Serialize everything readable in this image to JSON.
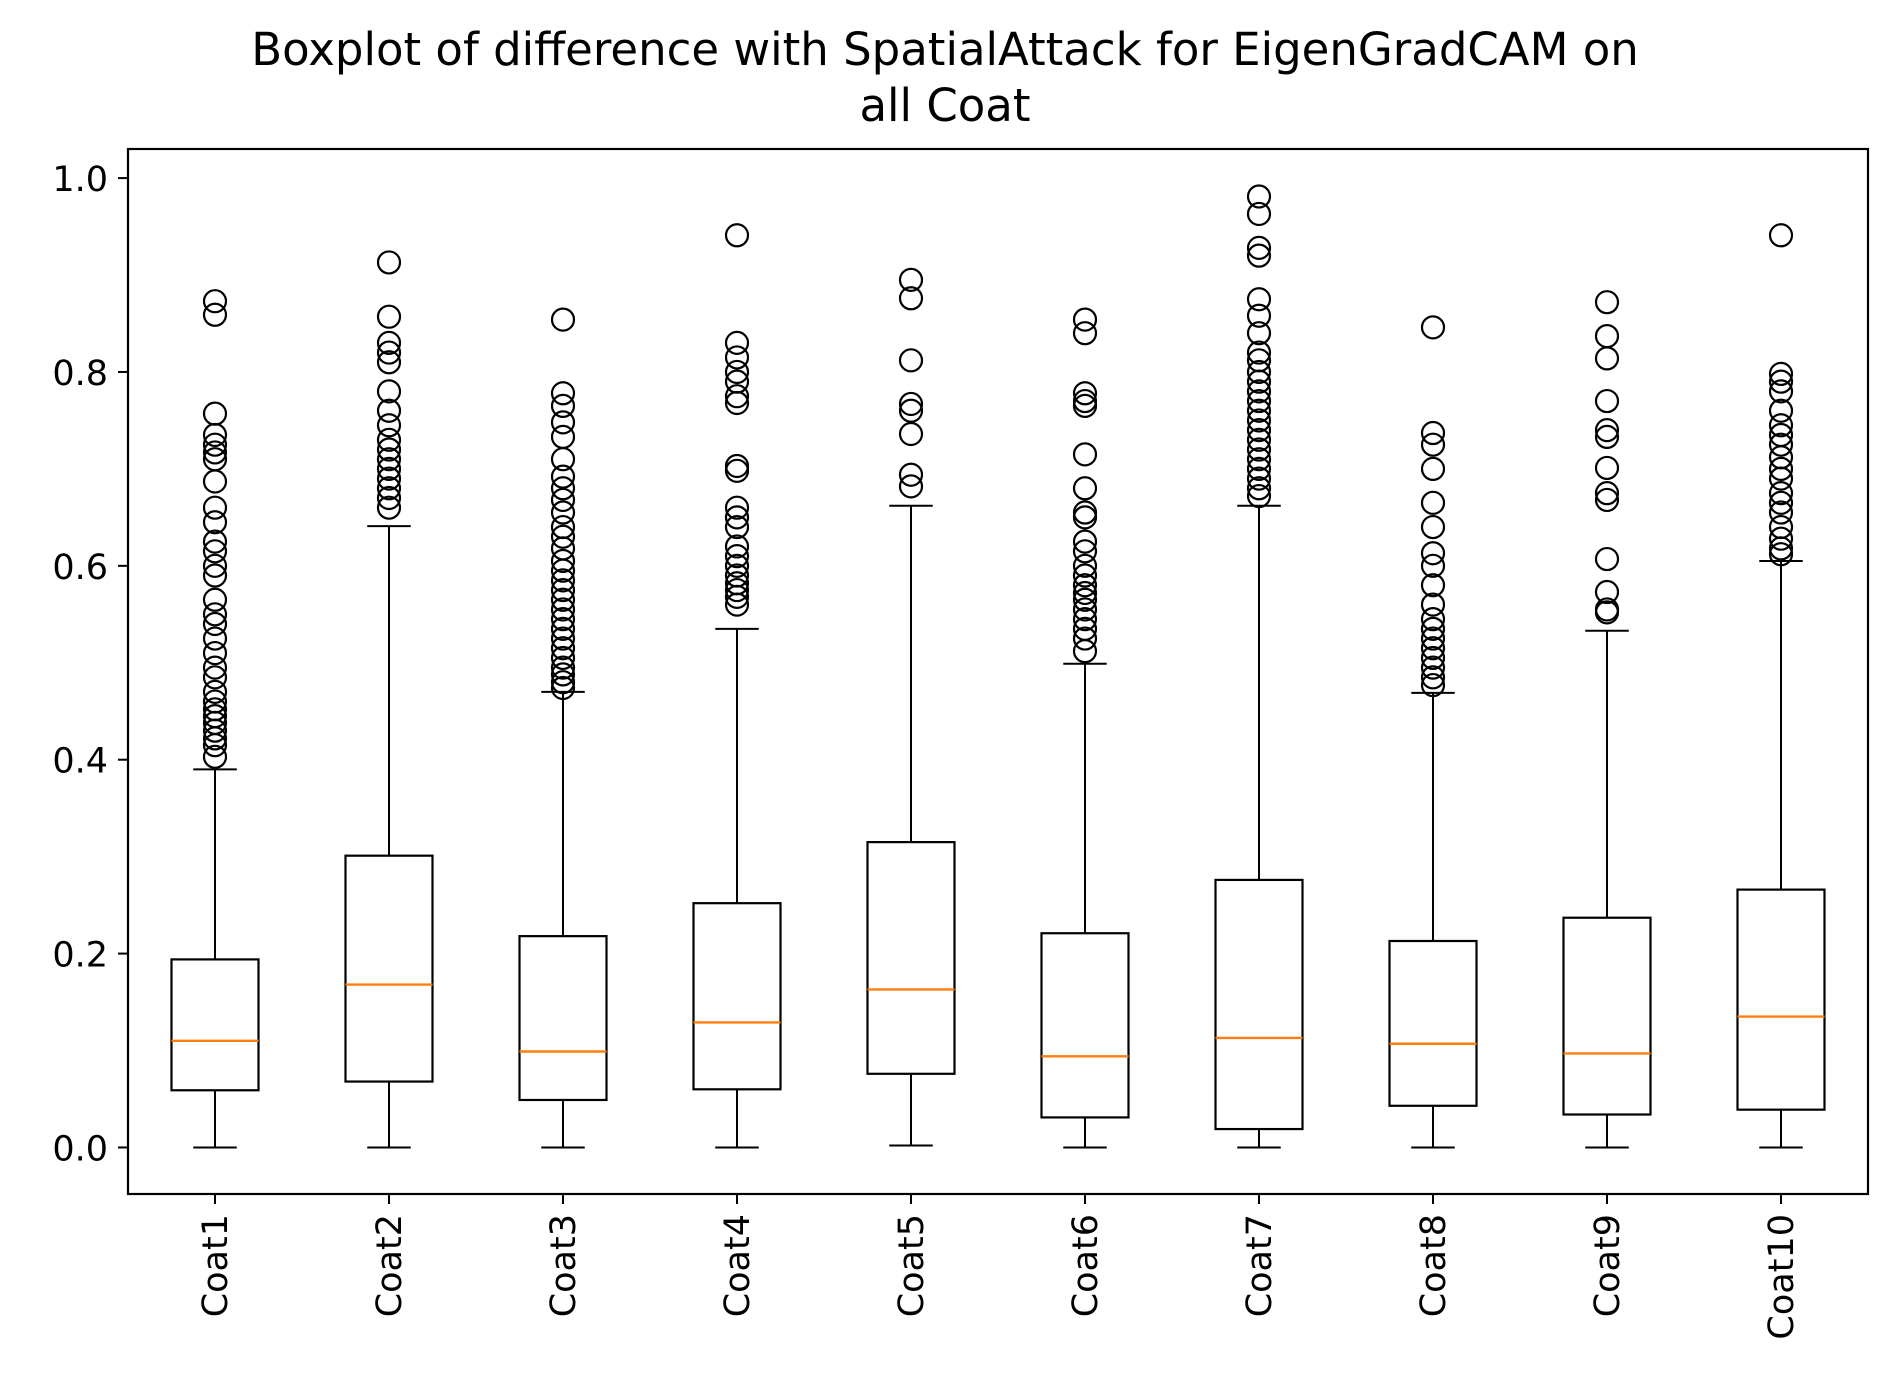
{
  "chart_data": {
    "type": "boxplot",
    "title_lines": [
      "Boxplot of difference with SpatialAttack for EigenGradCAM on",
      "all Coat"
    ],
    "xlabel": "",
    "ylabel": "",
    "ylim": [
      -0.048,
      1.03
    ],
    "yticks": [
      0.0,
      0.2,
      0.4,
      0.6,
      0.8,
      1.0
    ],
    "ytick_labels": [
      "0.0",
      "0.2",
      "0.4",
      "0.6",
      "0.8",
      "1.0"
    ],
    "grid": false,
    "colors": {
      "box": "#000000",
      "median": "#ff7f0e",
      "outlier": "#000000"
    },
    "categories": [
      "Coat1",
      "Coat2",
      "Coat3",
      "Coat4",
      "Coat5",
      "Coat6",
      "Coat7",
      "Coat8",
      "Coat9",
      "Coat10"
    ],
    "boxes": [
      {
        "name": "Coat1",
        "whisker_low": 0.0,
        "q1": 0.059,
        "median": 0.11,
        "q3": 0.194,
        "whisker_high": 0.39,
        "outliers": [
          0.873,
          0.859,
          0.757,
          0.735,
          0.725,
          0.717,
          0.71,
          0.687,
          0.66,
          0.645,
          0.625,
          0.615,
          0.6,
          0.59,
          0.565,
          0.55,
          0.54,
          0.525,
          0.51,
          0.495,
          0.485,
          0.47,
          0.46,
          0.452,
          0.445,
          0.438,
          0.43,
          0.422,
          0.415,
          0.403
        ]
      },
      {
        "name": "Coat2",
        "whisker_low": 0.0,
        "q1": 0.068,
        "median": 0.168,
        "q3": 0.301,
        "whisker_high": 0.641,
        "outliers": [
          0.913,
          0.857,
          0.83,
          0.82,
          0.81,
          0.78,
          0.76,
          0.745,
          0.73,
          0.72,
          0.71,
          0.7,
          0.69,
          0.68,
          0.67,
          0.66
        ]
      },
      {
        "name": "Coat3",
        "whisker_low": 0.0,
        "q1": 0.049,
        "median": 0.099,
        "q3": 0.218,
        "whisker_high": 0.47,
        "outliers": [
          0.854,
          0.778,
          0.765,
          0.748,
          0.733,
          0.71,
          0.692,
          0.68,
          0.668,
          0.655,
          0.64,
          0.63,
          0.618,
          0.605,
          0.595,
          0.585,
          0.575,
          0.565,
          0.555,
          0.545,
          0.535,
          0.525,
          0.515,
          0.505,
          0.495,
          0.488,
          0.48,
          0.474
        ]
      },
      {
        "name": "Coat4",
        "whisker_low": 0.0,
        "q1": 0.06,
        "median": 0.129,
        "q3": 0.252,
        "whisker_high": 0.535,
        "outliers": [
          0.941,
          0.83,
          0.815,
          0.8,
          0.79,
          0.775,
          0.768,
          0.703,
          0.698,
          0.66,
          0.65,
          0.64,
          0.62,
          0.61,
          0.6,
          0.59,
          0.582,
          0.575,
          0.568,
          0.56
        ]
      },
      {
        "name": "Coat5",
        "whisker_low": 0.002,
        "q1": 0.076,
        "median": 0.163,
        "q3": 0.315,
        "whisker_high": 0.662,
        "outliers": [
          0.895,
          0.876,
          0.812,
          0.767,
          0.76,
          0.736,
          0.694,
          0.682
        ]
      },
      {
        "name": "Coat6",
        "whisker_low": 0.0,
        "q1": 0.031,
        "median": 0.094,
        "q3": 0.221,
        "whisker_high": 0.499,
        "outliers": [
          0.854,
          0.84,
          0.778,
          0.77,
          0.765,
          0.715,
          0.68,
          0.655,
          0.65,
          0.625,
          0.615,
          0.6,
          0.59,
          0.58,
          0.572,
          0.565,
          0.555,
          0.545,
          0.535,
          0.525,
          0.512
        ]
      },
      {
        "name": "Coat7",
        "whisker_low": 0.0,
        "q1": 0.019,
        "median": 0.113,
        "q3": 0.276,
        "whisker_high": 0.662,
        "outliers": [
          0.981,
          0.963,
          0.928,
          0.92,
          0.875,
          0.858,
          0.84,
          0.82,
          0.812,
          0.8,
          0.79,
          0.78,
          0.77,
          0.76,
          0.75,
          0.74,
          0.73,
          0.72,
          0.71,
          0.7,
          0.69,
          0.68,
          0.672
        ]
      },
      {
        "name": "Coat8",
        "whisker_low": 0.0,
        "q1": 0.043,
        "median": 0.107,
        "q3": 0.213,
        "whisker_high": 0.469,
        "outliers": [
          0.846,
          0.737,
          0.725,
          0.7,
          0.665,
          0.64,
          0.613,
          0.6,
          0.58,
          0.56,
          0.545,
          0.535,
          0.525,
          0.515,
          0.505,
          0.495,
          0.485,
          0.477
        ]
      },
      {
        "name": "Coat9",
        "whisker_low": 0.0,
        "q1": 0.034,
        "median": 0.097,
        "q3": 0.237,
        "whisker_high": 0.533,
        "outliers": [
          0.872,
          0.837,
          0.814,
          0.77,
          0.74,
          0.733,
          0.701,
          0.675,
          0.668,
          0.607,
          0.573,
          0.555,
          0.552
        ]
      },
      {
        "name": "Coat10",
        "whisker_low": 0.0,
        "q1": 0.039,
        "median": 0.135,
        "q3": 0.266,
        "whisker_high": 0.605,
        "outliers": [
          0.941,
          0.798,
          0.79,
          0.78,
          0.76,
          0.745,
          0.735,
          0.725,
          0.712,
          0.7,
          0.69,
          0.675,
          0.665,
          0.655,
          0.64,
          0.628,
          0.618,
          0.612
        ]
      }
    ]
  }
}
